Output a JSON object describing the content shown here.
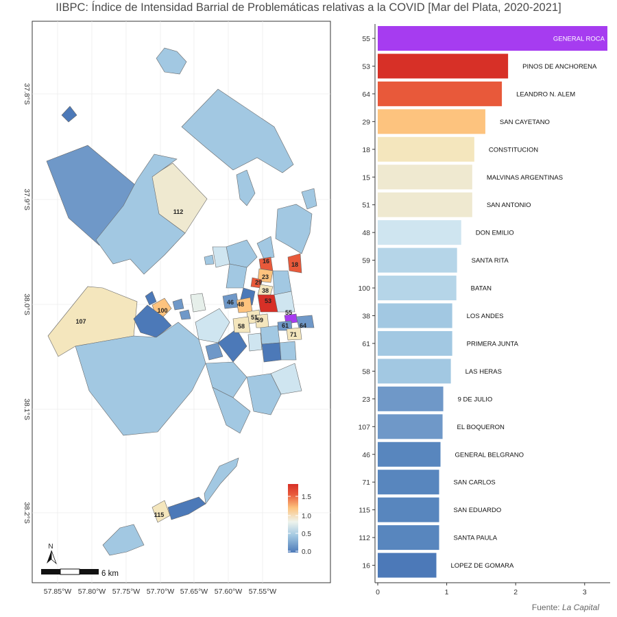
{
  "title": "IIBPC: Índice de Intensidad Barrial de Problemáticas relativas a la COVID [Mar del Plata, 2020-2021]",
  "source": {
    "prefix": "Fuente: ",
    "name": "La Capital"
  },
  "colors": {
    "max": "#A63CF0",
    "red": "#D73027",
    "orange_red": "#E8593A",
    "orange": "#FDC37E",
    "light": "#F4E6BD",
    "pale": "#EFE9D0",
    "light_blue": "#CFE5F0",
    "blue_1": "#B5D5E8",
    "blue_2": "#A2C8E2",
    "blue_3": "#6F98C8",
    "blue_4": "#5886BE",
    "blue_5": "#4C79B8"
  },
  "map": {
    "x_ticks": [
      "57.85°W",
      "57.80°W",
      "57.75°W",
      "57.70°W",
      "57.65°W",
      "57.60°W",
      "57.55°W"
    ],
    "y_ticks": [
      "37.8°S",
      "37.9°S",
      "38.0°S",
      "38.1°S",
      "38.2°S"
    ],
    "north_label": "N",
    "scale_label": "6 km",
    "legend_ticks": [
      "1.5",
      "1.0",
      "0.5",
      "0.0"
    ],
    "polygon_labels": [
      "112",
      "107",
      "100",
      "16",
      "18",
      "23",
      "29",
      "38",
      "46",
      "48",
      "53",
      "51",
      "59",
      "58",
      "55",
      "64",
      "61",
      "71",
      "115"
    ]
  },
  "chart_data": {
    "type": "bar",
    "orientation": "horizontal",
    "title": "IIBPC: Índice de Intensidad Barrial de Problemáticas relativas a la COVID [Mar del Plata, 2020-2021]",
    "xlim": [
      0,
      3.35
    ],
    "x_ticks": [
      0,
      1,
      2,
      3
    ],
    "grid": false,
    "categories": [
      "GENERAL ROCA",
      "PINOS DE ANCHORENA",
      "LEANDRO N. ALEM",
      "SAN CAYETANO",
      "CONSTITUCION",
      "MALVINAS ARGENTINAS",
      "SAN ANTONIO",
      "DON EMILIO",
      "SANTA RITA",
      "BATAN",
      "LOS ANDES",
      "PRIMERA JUNTA",
      "LAS HERAS",
      "9 DE JULIO",
      "EL BOQUERON",
      "GENERAL BELGRANO",
      "SAN CARLOS",
      "SAN EDUARDO",
      "SANTA PAULA",
      "LOPEZ DE GOMARA"
    ],
    "ids": [
      "55",
      "53",
      "64",
      "29",
      "18",
      "15",
      "51",
      "48",
      "59",
      "100",
      "38",
      "61",
      "58",
      "23",
      "107",
      "46",
      "71",
      "115",
      "112",
      "16"
    ],
    "values": [
      3.33,
      1.89,
      1.8,
      1.56,
      1.4,
      1.37,
      1.37,
      1.21,
      1.15,
      1.14,
      1.08,
      1.08,
      1.06,
      0.95,
      0.94,
      0.91,
      0.89,
      0.89,
      0.89,
      0.85
    ],
    "bar_colors": [
      "#A63CF0",
      "#D73027",
      "#E8593A",
      "#FDC37E",
      "#F4E6BD",
      "#EFE9D0",
      "#EFE9D0",
      "#CFE5F0",
      "#B5D5E8",
      "#B5D5E8",
      "#A2C8E2",
      "#A2C8E2",
      "#A2C8E2",
      "#6F98C8",
      "#6F98C8",
      "#5886BE",
      "#5886BE",
      "#5886BE",
      "#5886BE",
      "#4C79B8"
    ]
  }
}
